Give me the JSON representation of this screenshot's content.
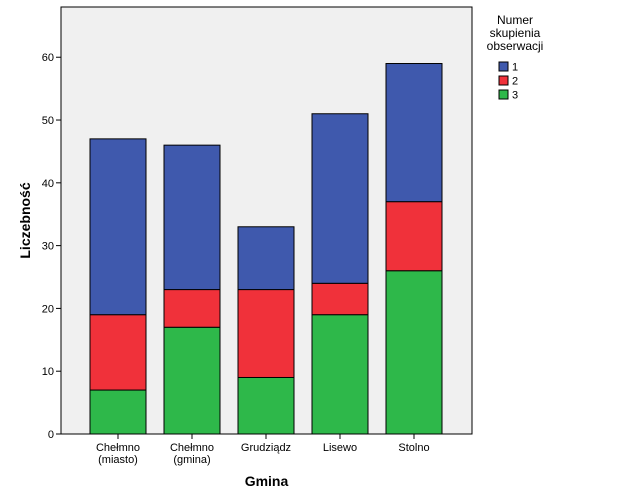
{
  "chart_data": {
    "type": "bar",
    "stacked": true,
    "categories": [
      [
        "Chełmno",
        "(miasto)"
      ],
      [
        "Chełmno",
        "(gmina)"
      ],
      [
        "Grudziądz"
      ],
      [
        "Lisewo"
      ],
      [
        "Stolno"
      ]
    ],
    "series": [
      {
        "name": "3",
        "color": "#2eb84a",
        "values": [
          7,
          17,
          9,
          19,
          26
        ]
      },
      {
        "name": "2",
        "color": "#f0313a",
        "values": [
          12,
          6,
          14,
          5,
          11
        ]
      },
      {
        "name": "1",
        "color": "#3f59ad",
        "values": [
          28,
          23,
          10,
          27,
          22
        ]
      }
    ],
    "legend_order": [
      "1",
      "2",
      "3"
    ],
    "legend_title": [
      "Numer",
      "skupienia",
      "obserwacji"
    ],
    "legend_placement": "top-right",
    "xlabel": "Gmina",
    "ylabel": "Liczebność",
    "ylim": [
      0,
      68
    ],
    "yticks": [
      0,
      10,
      20,
      30,
      40,
      50,
      60
    ],
    "grid": false,
    "background": "#f0f0f0"
  }
}
